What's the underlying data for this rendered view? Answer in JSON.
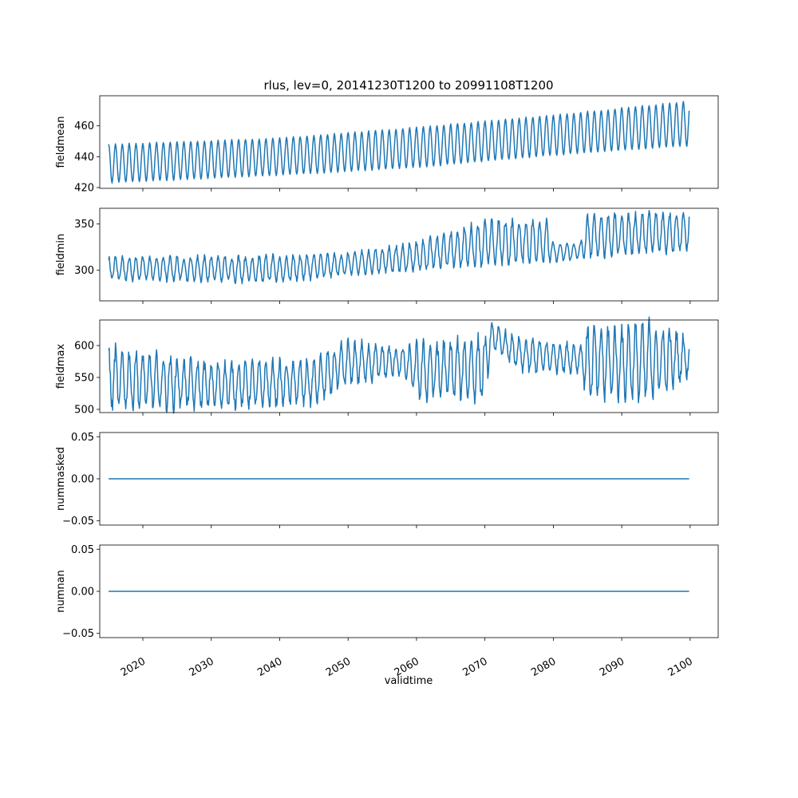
{
  "figure": {
    "title": "rlus, lev=0, 20141230T1200 to 20991108T1200",
    "xlabel": "validtime"
  },
  "style": {
    "line_color": "#1f77b4",
    "axis_color": "#000000"
  },
  "chart_data": [
    {
      "type": "line",
      "title": "rlus, lev=0, 20141230T1200 to 20991108T1200",
      "ylabel": "fieldmean",
      "xlim": [
        2013.7,
        2104.1
      ],
      "ylim": [
        419.5,
        479.5
      ],
      "yticks": [
        420,
        440,
        460
      ],
      "xticks": [
        2020,
        2030,
        2040,
        2050,
        2060,
        2070,
        2080,
        2090,
        2100
      ],
      "series": [
        {
          "x_start": "2014-12-30",
          "x_end": "2099-11-08",
          "values_summary": "seasonal cycle, monthly, rising trend",
          "control": [
            [
              2015.0,
              423,
              448
            ],
            [
              2040,
              428,
              452
            ],
            [
              2060,
              433,
              459
            ],
            [
              2080,
              441,
              467
            ],
            [
              2099.85,
              447,
              476
            ]
          ]
        }
      ]
    },
    {
      "type": "line",
      "ylabel": "fieldmin",
      "xlim": [
        2013.7,
        2104.1
      ],
      "ylim": [
        267,
        367
      ],
      "yticks": [
        300,
        350
      ],
      "xticks": [
        2020,
        2030,
        2040,
        2050,
        2060,
        2070,
        2080,
        2090,
        2100
      ],
      "series": [
        {
          "x_start": "2014-12-30",
          "x_end": "2099-11-08",
          "control": [
            [
              2015.0,
              290,
              314
            ],
            [
              2040,
              288,
              315
            ],
            [
              2050,
              295,
              318
            ],
            [
              2060,
              300,
              330
            ],
            [
              2070,
              306,
              352
            ],
            [
              2079,
              310,
              354
            ],
            [
              2080,
              310,
              328
            ],
            [
              2084,
              312,
              330
            ],
            [
              2085,
              315,
              358
            ],
            [
              2099.85,
              322,
              363
            ]
          ]
        }
      ]
    },
    {
      "type": "line",
      "ylabel": "fieldmax",
      "xlim": [
        2013.7,
        2104.1
      ],
      "ylim": [
        495,
        640
      ],
      "yticks": [
        500,
        550,
        600
      ],
      "xticks": [
        2020,
        2030,
        2040,
        2050,
        2060,
        2070,
        2080,
        2090,
        2100
      ],
      "series": [
        {
          "x_start": "2014-12-30",
          "x_end": "2099-11-08",
          "control": [
            [
              2015.0,
              503,
              594
            ],
            [
              2030,
              505,
              570
            ],
            [
              2045,
              510,
              575
            ],
            [
              2050,
              540,
              605
            ],
            [
              2058,
              555,
              595
            ],
            [
              2060,
              520,
              600
            ],
            [
              2070,
              520,
              610
            ],
            [
              2071,
              600,
              632
            ],
            [
              2075,
              560,
              610
            ],
            [
              2084,
              560,
              600
            ],
            [
              2085,
              520,
              625
            ],
            [
              2095,
              520,
              632
            ],
            [
              2099.85,
              552,
              612
            ]
          ]
        }
      ]
    },
    {
      "type": "line",
      "ylabel": "nummasked",
      "xlim": [
        2013.7,
        2104.1
      ],
      "ylim": [
        -0.055,
        0.055
      ],
      "yticks": [
        -0.05,
        0.0,
        0.05
      ],
      "yticklabels": [
        "−0.05",
        "0.00",
        "0.05"
      ],
      "xticks": [
        2020,
        2030,
        2040,
        2050,
        2060,
        2070,
        2080,
        2090,
        2100
      ],
      "series": [
        {
          "x": [
            2015.0,
            2099.85
          ],
          "y": [
            0,
            0
          ]
        }
      ]
    },
    {
      "type": "line",
      "ylabel": "numnan",
      "xlabel": "validtime",
      "xlim": [
        2013.7,
        2104.1
      ],
      "ylim": [
        -0.055,
        0.055
      ],
      "yticks": [
        -0.05,
        0.0,
        0.05
      ],
      "yticklabels": [
        "−0.05",
        "0.00",
        "0.05"
      ],
      "xticks": [
        2020,
        2030,
        2040,
        2050,
        2060,
        2070,
        2080,
        2090,
        2100
      ],
      "xticklabels": [
        "2020",
        "2030",
        "2040",
        "2050",
        "2060",
        "2070",
        "2080",
        "2090",
        "2100"
      ],
      "series": [
        {
          "x": [
            2015.0,
            2099.85
          ],
          "y": [
            0,
            0
          ]
        }
      ]
    }
  ]
}
